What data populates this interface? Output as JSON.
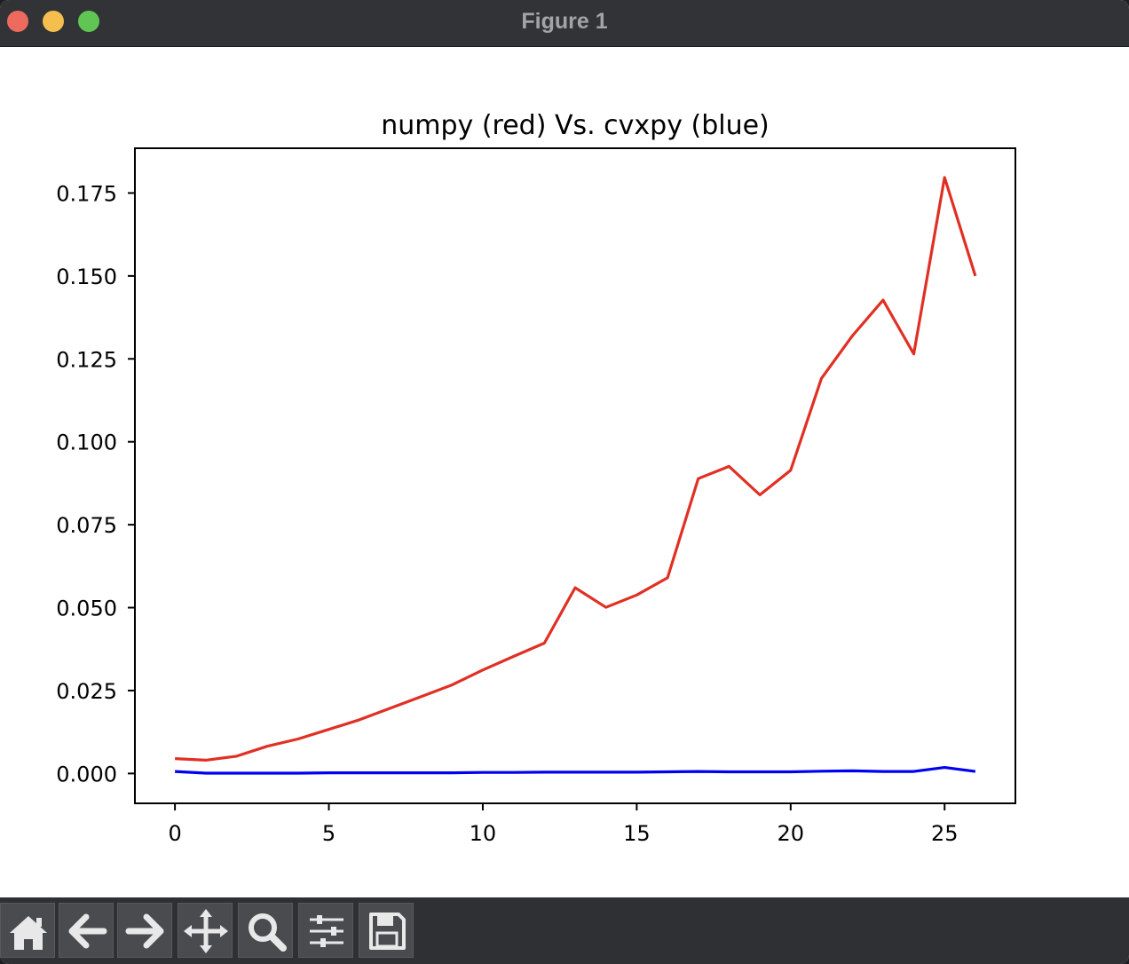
{
  "window": {
    "title": "Figure 1"
  },
  "toolbar": {
    "buttons": [
      {
        "name": "home",
        "icon": "home-icon"
      },
      {
        "name": "back",
        "icon": "arrow-left-icon"
      },
      {
        "name": "forward",
        "icon": "arrow-right-icon"
      },
      {
        "name": "pan",
        "icon": "move-icon"
      },
      {
        "name": "zoom",
        "icon": "magnifier-icon"
      },
      {
        "name": "configure-subplots",
        "icon": "sliders-icon"
      },
      {
        "name": "save",
        "icon": "floppy-disk-icon"
      }
    ]
  },
  "chart_data": {
    "type": "line",
    "title": "numpy (red) Vs. cvxpy (blue)",
    "xlabel": "",
    "ylabel": "",
    "xlim": [
      -1.3,
      27.3
    ],
    "ylim": [
      -0.009,
      0.1885
    ],
    "xticks": [
      0,
      5,
      10,
      15,
      20,
      25
    ],
    "xtick_labels": [
      "0",
      "5",
      "10",
      "15",
      "20",
      "25"
    ],
    "yticks": [
      0.0,
      0.025,
      0.05,
      0.075,
      0.1,
      0.125,
      0.15,
      0.175
    ],
    "ytick_labels": [
      "0.000",
      "0.025",
      "0.050",
      "0.075",
      "0.100",
      "0.125",
      "0.150",
      "0.175"
    ],
    "grid": false,
    "legend": "none",
    "x": [
      0,
      1,
      2,
      3,
      4,
      5,
      6,
      7,
      8,
      9,
      10,
      11,
      12,
      13,
      14,
      15,
      16,
      17,
      18,
      19,
      20,
      21,
      22,
      23,
      24,
      25,
      26
    ],
    "series": [
      {
        "color": "#e03024",
        "values": [
          0.0045,
          0.004,
          0.0052,
          0.0082,
          0.0104,
          0.0133,
          0.0162,
          0.0197,
          0.0232,
          0.0267,
          0.0312,
          0.0353,
          0.0393,
          0.056,
          0.0501,
          0.0538,
          0.059,
          0.0889,
          0.0926,
          0.084,
          0.0914,
          0.1191,
          0.1319,
          0.1427,
          0.1265,
          0.1797,
          0.15
        ]
      },
      {
        "color": "#0000f0",
        "values": [
          0.0006,
          0.0001,
          0.0001,
          0.0001,
          0.0001,
          0.0002,
          0.0002,
          0.0002,
          0.0002,
          0.0002,
          0.0003,
          0.0003,
          0.0004,
          0.0004,
          0.0004,
          0.0004,
          0.0005,
          0.0006,
          0.0005,
          0.0005,
          0.0005,
          0.0007,
          0.0008,
          0.0006,
          0.0006,
          0.0018,
          0.0006
        ]
      }
    ]
  }
}
